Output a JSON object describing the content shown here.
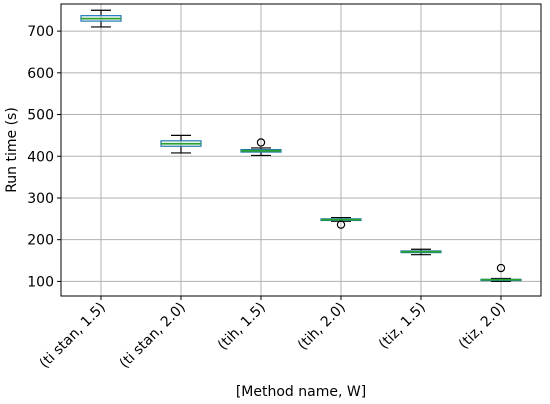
{
  "chart_data": {
    "type": "box",
    "title": "",
    "xlabel": "[Method name, W]",
    "ylabel": "Run time (s)",
    "ylim": [
      65,
      765
    ],
    "yticks": [
      100,
      200,
      300,
      400,
      500,
      600,
      700
    ],
    "grid": true,
    "box_color": "#1f77b4",
    "median_color": "#2ca02c",
    "categories": [
      "(ti stan, 1.5)",
      "(ti stan, 2.0)",
      "(tih, 1.5)",
      "(tih, 2.0)",
      "(tiz, 1.5)",
      "(tiz, 2.0)"
    ],
    "boxes": [
      {
        "whisker_low": 710,
        "q1": 724,
        "median": 730,
        "q3": 737,
        "whisker_high": 750,
        "outliers": []
      },
      {
        "whisker_low": 408,
        "q1": 424,
        "median": 430,
        "q3": 437,
        "whisker_high": 450,
        "outliers": []
      },
      {
        "whisker_low": 402,
        "q1": 410,
        "median": 413,
        "q3": 416,
        "whisker_high": 420,
        "outliers": [
          433
        ]
      },
      {
        "whisker_low": 244,
        "q1": 246,
        "median": 248,
        "q3": 250,
        "whisker_high": 253,
        "outliers": [
          236
        ]
      },
      {
        "whisker_low": 164,
        "q1": 169,
        "median": 171,
        "q3": 173,
        "whisker_high": 177,
        "outliers": []
      },
      {
        "whisker_low": 100,
        "q1": 102,
        "median": 104,
        "q3": 105,
        "whisker_high": 107,
        "outliers": [
          132
        ]
      }
    ]
  }
}
